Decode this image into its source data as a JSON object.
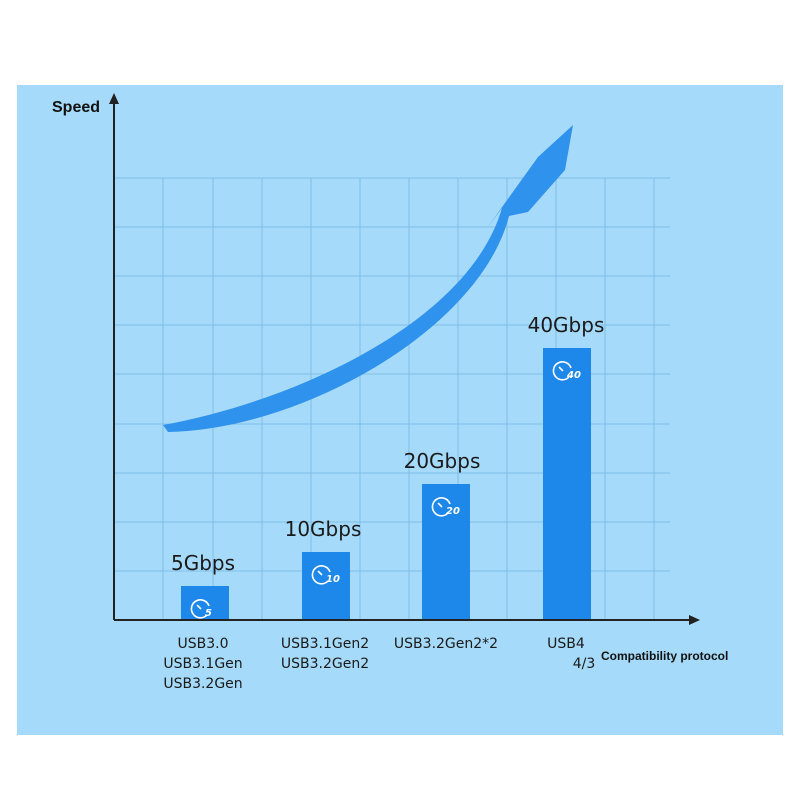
{
  "chart_data": {
    "type": "bar",
    "ylabel": "Speed",
    "xlabel": "Compatibility protocol",
    "unit": "Gbps",
    "categories": [
      [
        "USB3.0",
        "USB3.1Gen",
        "USB3.2Gen"
      ],
      [
        "USB3.1Gen2",
        "USB3.2Gen2"
      ],
      [
        "USB3.2Gen2*2"
      ],
      [
        "USB4",
        "4/3"
      ]
    ],
    "values": [
      5,
      10,
      20,
      40
    ],
    "value_labels": [
      "5Gbps",
      "10Gbps",
      "20Gbps",
      "40Gbps"
    ],
    "icon_labels": [
      "5",
      "10",
      "20",
      "40"
    ],
    "ylim": [
      0,
      45
    ],
    "grid": true,
    "trend_arrow": true
  },
  "colors": {
    "background": "#a6dafa",
    "bar": "#1e88ea",
    "arrow": "#2f92ec",
    "grid": "#7fbde8",
    "axis": "#222222"
  },
  "icons": {
    "speedometer": "speedometer-icon",
    "trend": "trend-arrow-icon"
  }
}
